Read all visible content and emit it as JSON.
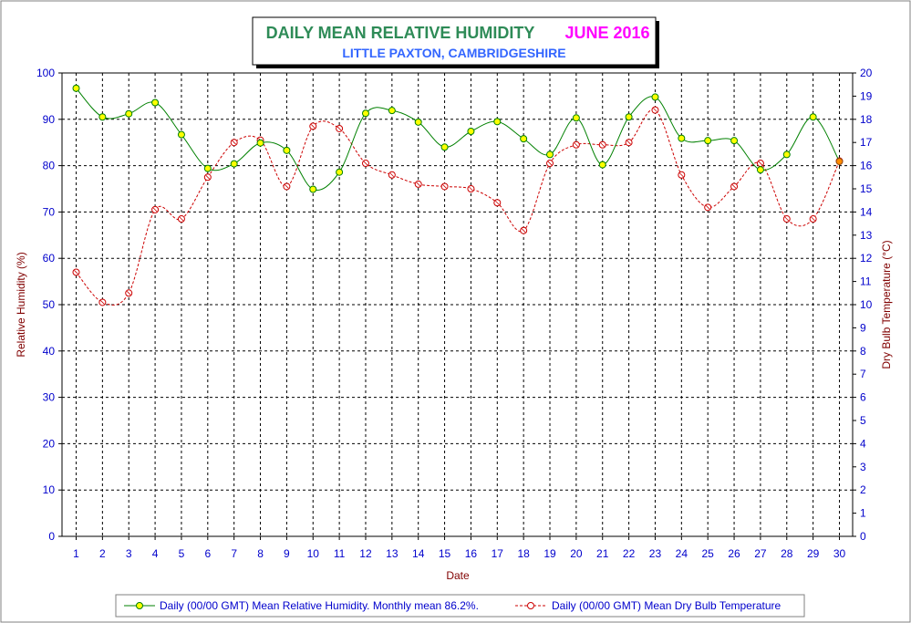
{
  "header": {
    "title": "DAILY MEAN RELATIVE HUMIDITY",
    "period": "JUNE 2016",
    "location": "LITTLE PAXTON, CAMBRIDGESHIRE"
  },
  "colors": {
    "title": "#2e8b57",
    "period": "#ff00ff",
    "location": "#3366ff",
    "axis_text": "#0000cc",
    "axis_title": "#800000",
    "humidity_line": "#008000",
    "humidity_marker_fill": "#ffff00",
    "temp_line": "#cc0000",
    "grid": "#000000",
    "frame": "#808080"
  },
  "chart_data": {
    "type": "line",
    "title": "DAILY MEAN RELATIVE HUMIDITY",
    "subtitle": "LITTLE PAXTON, CAMBRIDGESHIRE",
    "xlabel": "Date",
    "ylabel": "Relative Humidity (%)",
    "y2label": "Dry Bulb Temperature (°C)",
    "x": [
      1,
      2,
      3,
      4,
      5,
      6,
      7,
      8,
      9,
      10,
      11,
      12,
      13,
      14,
      15,
      16,
      17,
      18,
      19,
      20,
      21,
      22,
      23,
      24,
      25,
      26,
      27,
      28,
      29,
      30
    ],
    "x_ticks": [
      "1",
      "2",
      "3",
      "4",
      "5",
      "6",
      "7",
      "8",
      "9",
      "10",
      "11",
      "12",
      "13",
      "14",
      "15",
      "16",
      "17",
      "18",
      "19",
      "20",
      "21",
      "22",
      "23",
      "24",
      "25",
      "26",
      "27",
      "28",
      "29",
      "30"
    ],
    "ylim": [
      0,
      100
    ],
    "y_ticks": [
      "0",
      "10",
      "20",
      "30",
      "40",
      "50",
      "60",
      "70",
      "80",
      "90",
      "100"
    ],
    "y2lim": [
      0,
      20
    ],
    "y2_ticks": [
      "0",
      "1",
      "2",
      "3",
      "4",
      "5",
      "6",
      "7",
      "8",
      "9",
      "10",
      "11",
      "12",
      "13",
      "14",
      "15",
      "16",
      "17",
      "18",
      "19",
      "20"
    ],
    "grid": true,
    "legend_position": "bottom",
    "series": [
      {
        "name": "Daily (00/00 GMT) Mean Relative Humidity. Monthly mean 86.2%.",
        "axis": "left",
        "values": [
          96.7,
          90.5,
          91.2,
          93.6,
          86.7,
          79.4,
          80.4,
          84.9,
          83.3,
          74.9,
          78.6,
          91.3,
          91.9,
          89.4,
          84.0,
          87.4,
          89.5,
          85.8,
          82.4,
          90.3,
          80.2,
          90.5,
          94.8,
          85.9,
          85.4,
          85.4,
          79.1,
          82.4,
          90.5,
          80.9
        ]
      },
      {
        "name": "Daily (00/00 GMT) Mean Dry Bulb Temperature",
        "axis": "right",
        "values": [
          11.4,
          10.1,
          10.5,
          14.1,
          13.7,
          15.5,
          17.0,
          17.1,
          15.1,
          17.7,
          17.6,
          16.1,
          15.6,
          15.2,
          15.1,
          15.0,
          14.4,
          13.2,
          16.1,
          16.9,
          16.9,
          17.0,
          18.4,
          15.6,
          14.2,
          15.1,
          16.1,
          13.7,
          13.7,
          16.2
        ]
      }
    ]
  }
}
